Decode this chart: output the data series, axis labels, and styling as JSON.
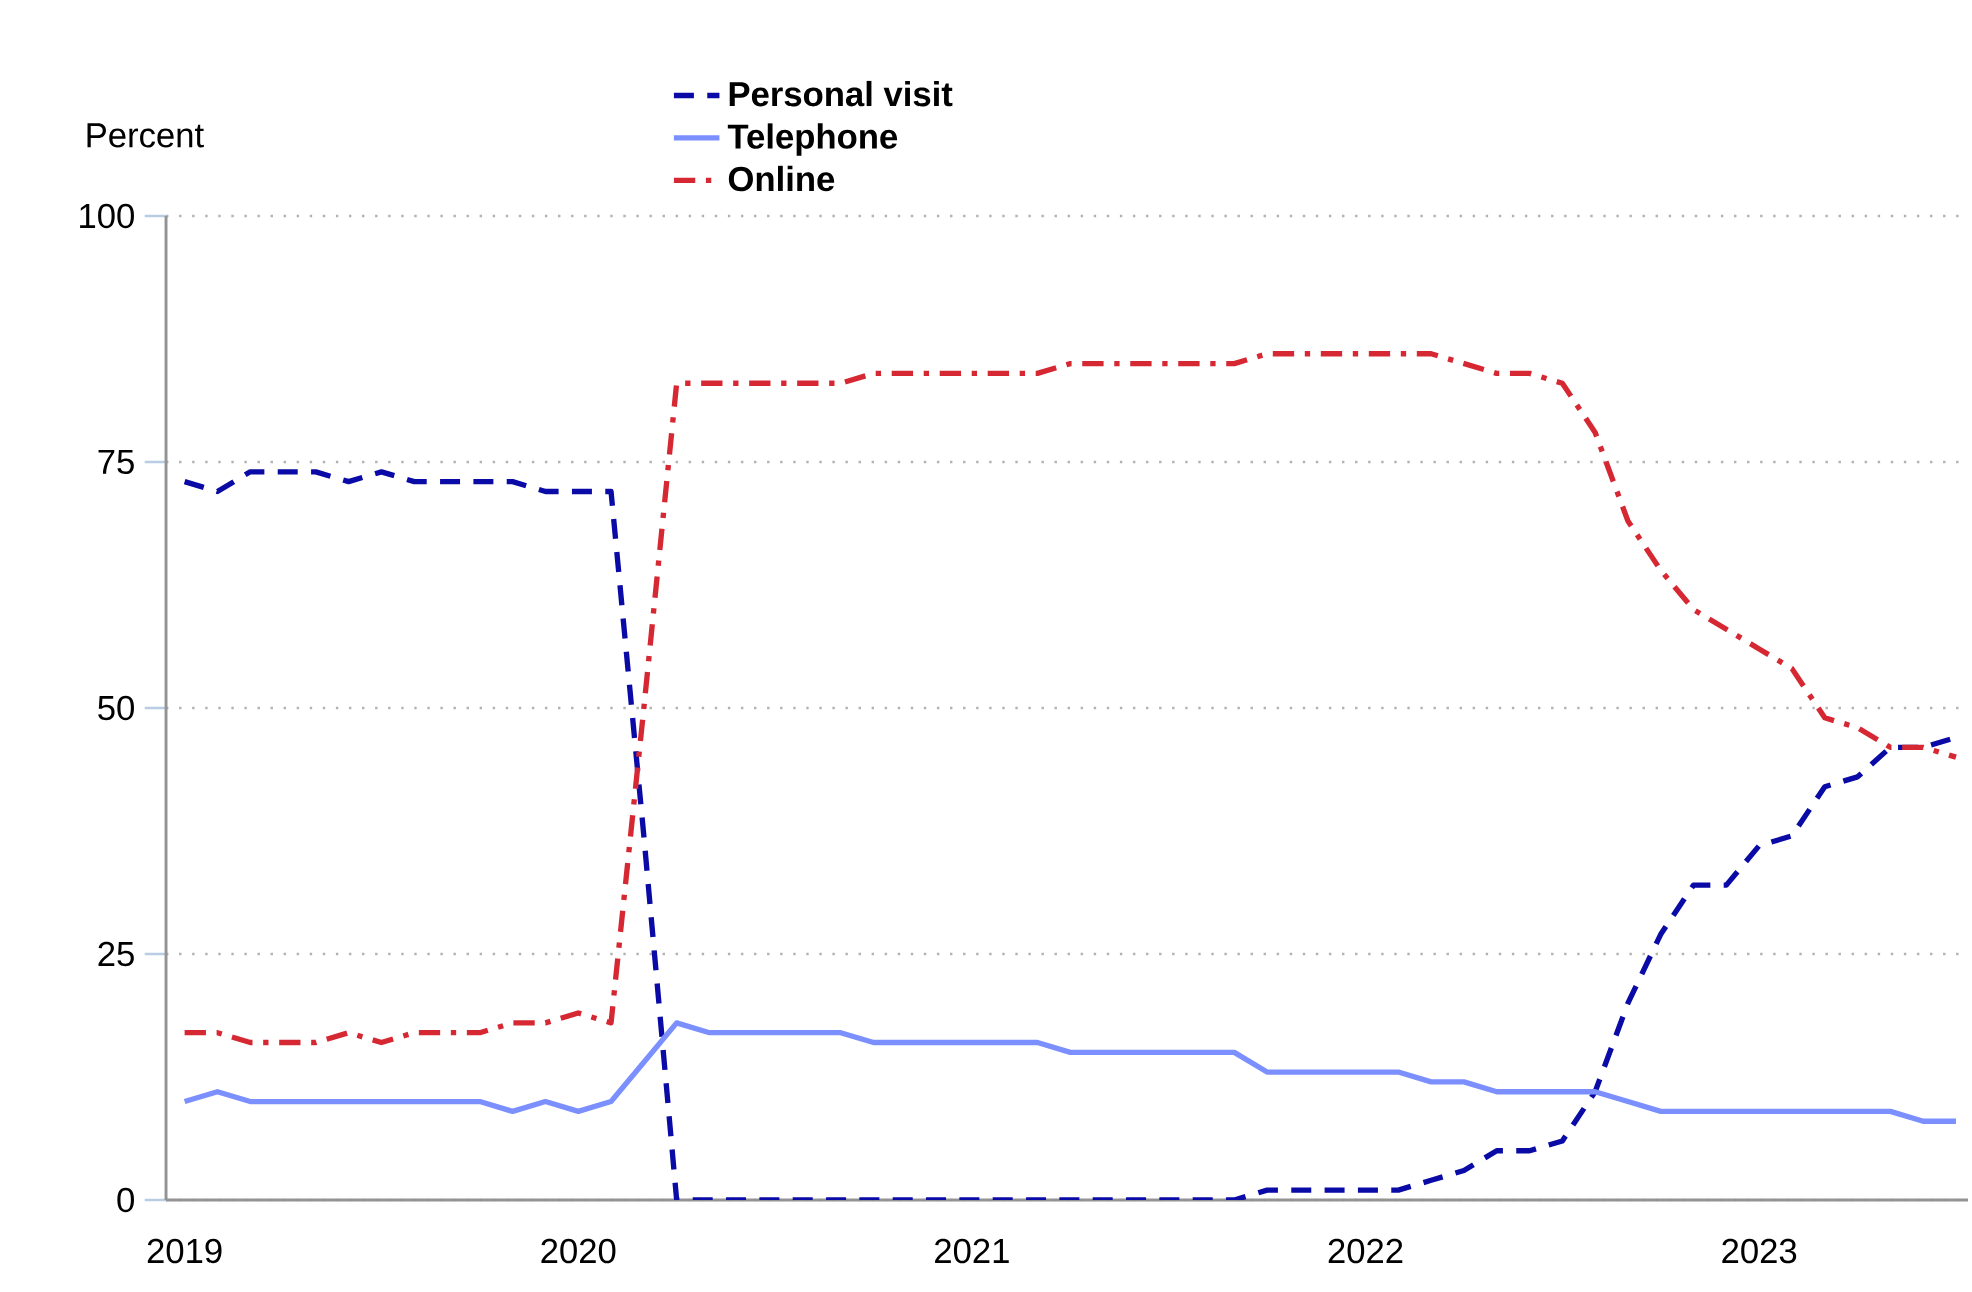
{
  "chart_data": {
    "type": "line",
    "ylabel": "Percent",
    "x": [
      "2019-01",
      "2019-02",
      "2019-03",
      "2019-04",
      "2019-05",
      "2019-06",
      "2019-07",
      "2019-08",
      "2019-09",
      "2019-10",
      "2019-11",
      "2019-12",
      "2020-01",
      "2020-02",
      "2020-03",
      "2020-04",
      "2020-05",
      "2020-06",
      "2020-07",
      "2020-08",
      "2020-09",
      "2020-10",
      "2020-11",
      "2020-12",
      "2021-01",
      "2021-02",
      "2021-03",
      "2021-04",
      "2021-05",
      "2021-06",
      "2021-07",
      "2021-08",
      "2021-09",
      "2021-10",
      "2021-11",
      "2021-12",
      "2022-01",
      "2022-02",
      "2022-03",
      "2022-04",
      "2022-05",
      "2022-06",
      "2022-07",
      "2022-08",
      "2022-09",
      "2022-10",
      "2022-11",
      "2022-12",
      "2023-01",
      "2023-02",
      "2023-03",
      "2023-04",
      "2023-05",
      "2023-06",
      "2023-07"
    ],
    "series": [
      {
        "name": "Personal visit",
        "color": "#0a0aa6",
        "line_style": "dashed",
        "values": [
          73,
          72,
          74,
          74,
          74,
          73,
          74,
          73,
          73,
          73,
          73,
          72,
          72,
          72,
          37,
          0,
          0,
          0,
          0,
          0,
          0,
          0,
          0,
          0,
          0,
          0,
          0,
          0,
          0,
          0,
          0,
          0,
          0,
          1,
          1,
          1,
          1,
          1,
          2,
          3,
          5,
          5,
          6,
          11,
          20,
          27,
          32,
          32,
          36,
          37,
          42,
          43,
          46,
          46,
          47
        ]
      },
      {
        "name": "Telephone",
        "color": "#7b8fff",
        "line_style": "solid",
        "values": [
          10,
          11,
          10,
          10,
          10,
          10,
          10,
          10,
          10,
          10,
          9,
          10,
          9,
          10,
          14,
          18,
          17,
          17,
          17,
          17,
          17,
          16,
          16,
          16,
          16,
          16,
          16,
          15,
          15,
          15,
          15,
          15,
          15,
          13,
          13,
          13,
          13,
          13,
          12,
          12,
          11,
          11,
          11,
          11,
          10,
          9,
          9,
          9,
          9,
          9,
          9,
          9,
          9,
          8,
          8
        ]
      },
      {
        "name": "Online",
        "color": "#d62832",
        "line_style": "dashdot",
        "values": [
          17,
          17,
          16,
          16,
          16,
          17,
          16,
          17,
          17,
          17,
          18,
          18,
          19,
          18,
          50,
          83,
          83,
          83,
          83,
          83,
          83,
          84,
          84,
          84,
          84,
          84,
          84,
          85,
          85,
          85,
          85,
          85,
          85,
          86,
          86,
          86,
          86,
          86,
          86,
          85,
          84,
          84,
          83,
          78,
          69,
          64,
          60,
          58,
          56,
          54,
          49,
          48,
          46,
          46,
          45
        ]
      }
    ],
    "xlim": [
      "2018-12-14",
      "2023-07-12"
    ],
    "xticks": [
      "2019",
      "2020",
      "2021",
      "2022",
      "2023"
    ],
    "ylim": [
      0,
      100
    ],
    "yticks": [
      0,
      25,
      50,
      75,
      100
    ],
    "grid": "y",
    "legend": "top"
  }
}
